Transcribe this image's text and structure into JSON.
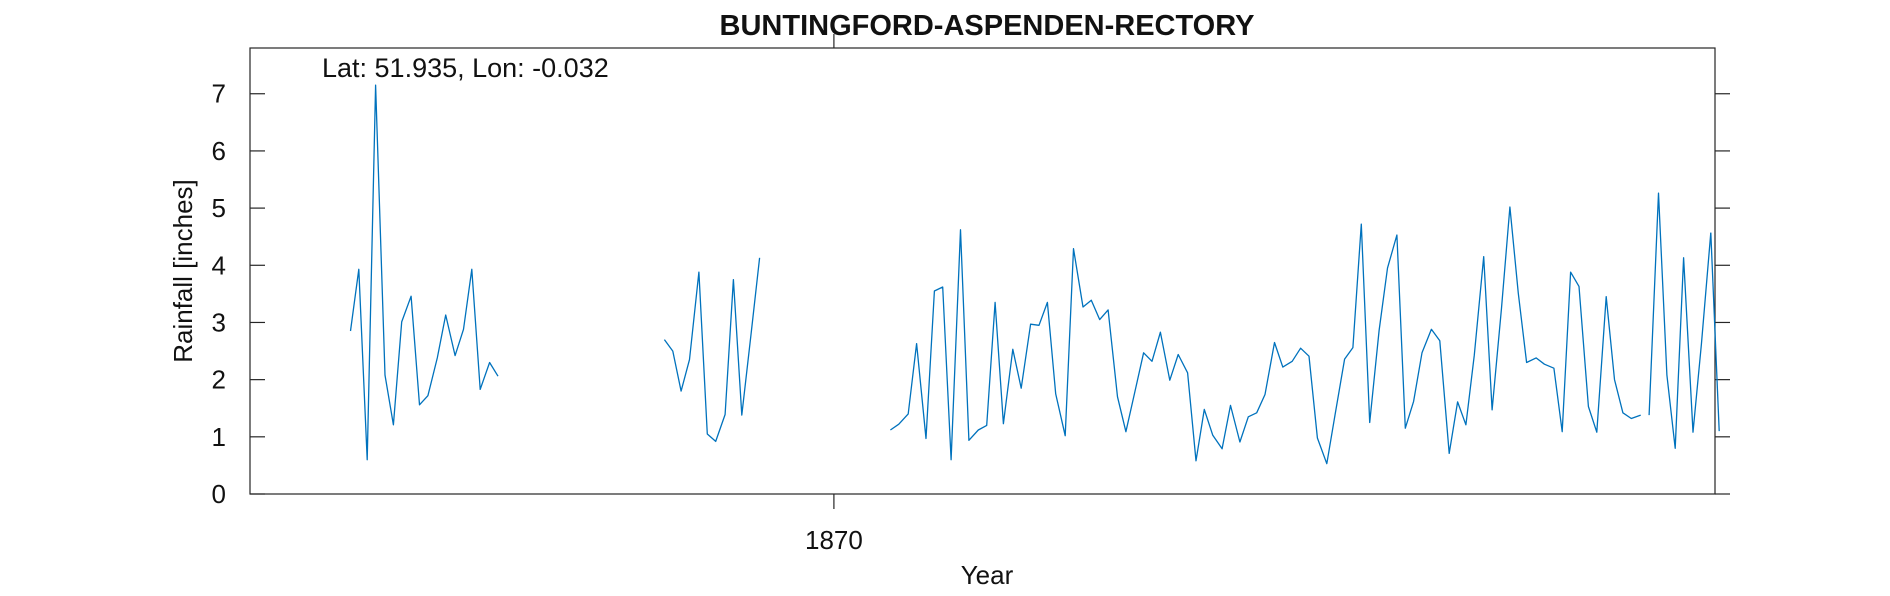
{
  "chart_data": {
    "type": "line",
    "title": "BUNTINGFORD-ASPENDEN-RECTORY",
    "annotation": "Lat: 51.935, Lon: -0.032",
    "xlabel": "Year",
    "ylabel": "Rainfall [inches]",
    "ylim": [
      0,
      7.8
    ],
    "yticks": [
      0,
      1,
      2,
      3,
      4,
      5,
      6,
      7
    ],
    "xlim": [
      1864.42,
      1878.42
    ],
    "xticks": [
      1870
    ],
    "xtick_labels": [
      "1870"
    ],
    "grid": false,
    "line_color": "#0072BD",
    "series": [
      {
        "segments": [
          {
            "x": [
              1865.38,
              1865.46,
              1865.54,
              1865.62,
              1865.71,
              1865.79,
              1865.87,
              1865.96,
              1866.04,
              1866.12,
              1866.21,
              1866.29,
              1866.38,
              1866.46,
              1866.54,
              1866.62,
              1866.71,
              1866.79
            ],
            "y": [
              2.85,
              3.93,
              0.6,
              7.15,
              2.08,
              1.21,
              3.01,
              3.46,
              1.56,
              1.72,
              2.38,
              3.13,
              2.42,
              2.88,
              3.93,
              1.83,
              2.3,
              2.06
            ]
          },
          {
            "x": [
              1868.38,
              1868.46,
              1868.54,
              1868.62,
              1868.71,
              1868.79,
              1868.87,
              1868.96,
              1869.04,
              1869.12,
              1869.21,
              1869.29
            ],
            "y": [
              2.7,
              2.5,
              1.8,
              2.35,
              3.88,
              1.05,
              0.92,
              1.39,
              3.75,
              1.38,
              2.82,
              4.13
            ]
          },
          {
            "x": [
              1870.54,
              1870.62,
              1870.71,
              1870.79,
              1870.88,
              1870.96,
              1871.04,
              1871.12,
              1871.21,
              1871.29,
              1871.38,
              1871.46,
              1871.54,
              1871.62,
              1871.71,
              1871.79,
              1871.88,
              1871.96,
              1872.04,
              1872.12,
              1872.21,
              1872.29,
              1872.38,
              1872.46,
              1872.54,
              1872.62,
              1872.71,
              1872.79,
              1872.88,
              1872.96,
              1873.04,
              1873.12,
              1873.21,
              1873.29,
              1873.38,
              1873.46,
              1873.54,
              1873.62,
              1873.71,
              1873.79,
              1873.88,
              1873.96,
              1874.04,
              1874.12,
              1874.21,
              1874.29,
              1874.38,
              1874.46,
              1874.54,
              1874.62,
              1874.71,
              1874.79,
              1874.88,
              1874.96,
              1875.04,
              1875.12,
              1875.21,
              1875.29,
              1875.38,
              1875.46,
              1875.54,
              1875.62,
              1875.71,
              1875.79,
              1875.88,
              1875.96,
              1876.04,
              1876.12,
              1876.21,
              1876.29,
              1876.38,
              1876.46,
              1876.54,
              1876.62,
              1876.71,
              1876.79,
              1876.88,
              1876.96,
              1877.04,
              1877.12,
              1877.21,
              1877.29,
              1877.38,
              1877.46,
              1877.54,
              1877.62,
              1877.71
            ],
            "y": [
              1.12,
              1.22,
              1.4,
              2.63,
              0.97,
              3.55,
              3.62,
              0.6,
              4.62,
              0.94,
              1.12,
              1.2,
              3.35,
              1.23,
              2.53,
              1.85,
              2.97,
              2.95,
              3.35,
              1.75,
              1.02,
              4.29,
              3.27,
              3.39,
              3.05,
              3.22,
              1.7,
              1.09,
              1.82,
              2.47,
              2.32,
              2.83,
              1.99,
              2.44,
              2.12,
              0.58,
              1.48,
              1.03,
              0.79,
              1.55,
              0.91,
              1.35,
              1.42,
              1.74,
              2.65,
              2.22,
              2.32,
              2.55,
              2.41,
              0.98,
              0.53,
              1.39,
              2.36,
              2.56,
              4.72,
              1.25,
              2.86,
              3.95,
              4.53,
              1.15,
              1.62,
              2.47,
              2.88,
              2.68,
              0.71,
              1.61,
              1.21,
              2.43,
              4.15,
              1.47,
              3.25,
              5.02,
              3.51,
              2.3,
              2.38,
              2.27,
              2.2,
              1.09,
              3.88,
              3.63,
              1.53,
              1.08,
              3.45,
              2.0,
              1.42,
              1.32,
              1.38
            ]
          },
          {
            "x": [
              1877.79,
              1877.88,
              1877.96,
              1878.04,
              1878.12,
              1878.21,
              1878.29,
              1878.38
            ],
            "y": [
              1.38,
              5.26,
              2.08,
              0.8,
              4.13,
              1.08,
              2.62,
              4.57
            ]
          },
          {
            "x": [
              1878.38,
              1878.46
            ],
            "y": [
              4.57,
              1.1
            ]
          }
        ]
      }
    ]
  }
}
